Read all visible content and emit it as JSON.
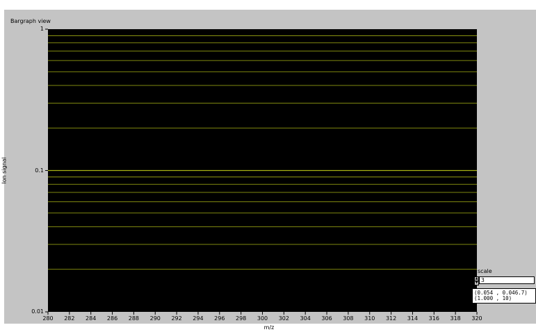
{
  "window": {
    "title": "Bargraph view"
  },
  "chart_data": {
    "type": "line",
    "xlabel": "m/z",
    "ylabel": "Ion signal",
    "x_ticks": [
      "280",
      "282",
      "284",
      "286",
      "288",
      "290",
      "292",
      "294",
      "296",
      "298",
      "300",
      "302",
      "304",
      "306",
      "308",
      "310",
      "312",
      "314",
      "316",
      "318",
      "320"
    ],
    "y_ticks": [
      "1",
      "0.1",
      "0.01"
    ],
    "y_scale": "log",
    "ylim": [
      0.01,
      1
    ],
    "xlim": [
      280,
      320
    ],
    "grid_lines_y": [
      0.9,
      0.8,
      0.7,
      0.6,
      0.5,
      0.4,
      0.3,
      0.2,
      0.1,
      0.09,
      0.08,
      0.07,
      0.06,
      0.05,
      0.04,
      0.03,
      0.02
    ],
    "series": []
  },
  "scale_control": {
    "label": "scale",
    "value": "3"
  },
  "cursor_readout": {
    "line1": "(0.054 , 0.046.7)",
    "line2": "(1.000 , 10)"
  },
  "colors": {
    "plot_bg": "#000000",
    "grid": "#a8b414",
    "panel": "#c4c4c4"
  }
}
